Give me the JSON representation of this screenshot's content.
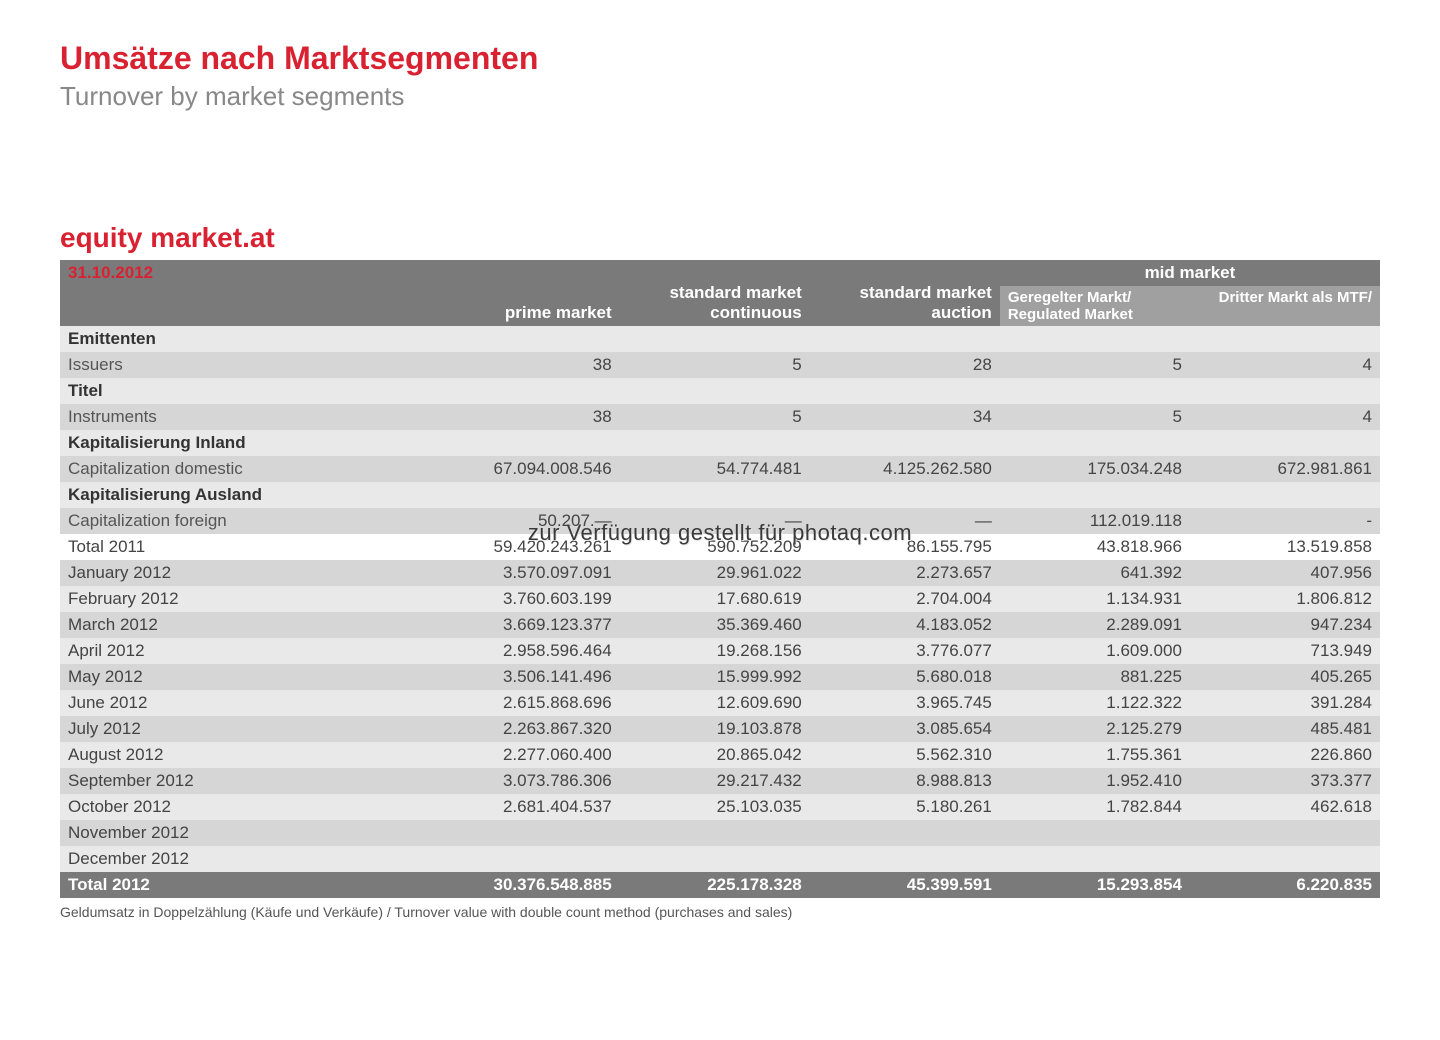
{
  "header": {
    "title_de": "Umsätze nach Marktsegmenten",
    "title_en": "Turnover by market segments",
    "section": "equity market.at",
    "date": "31.10.2012"
  },
  "columns": {
    "c1": "prime market",
    "c2": "standard market continuous",
    "c3": "standard market auction",
    "c4": "mid market",
    "sub_c4a": "Geregelter Markt/ Regulated Market",
    "sub_c4b": "Dritter Markt als MTF/"
  },
  "labels": {
    "emittenten": "Emittenten",
    "issuers": "Issuers",
    "titel": "Titel",
    "instruments": "Instruments",
    "kap_inland": "Kapitalisierung Inland",
    "cap_domestic": "Capitalization domestic",
    "kap_ausland": "Kapitalisierung Ausland",
    "cap_foreign": "Capitalization foreign",
    "total_2011": "Total 2011",
    "total_2012": "Total 2012"
  },
  "months": {
    "m1": "January 2012",
    "m2": "February 2012",
    "m3": "March 2012",
    "m4": "April 2012",
    "m5": "May 2012",
    "m6": "June 2012",
    "m7": "July 2012",
    "m8": "August 2012",
    "m9": "September 2012",
    "m10": "October 2012",
    "m11": "November 2012",
    "m12": "December 2012"
  },
  "data": {
    "issuers": {
      "c1": "38",
      "c2": "5",
      "c3": "28",
      "c4": "5",
      "c5": "4"
    },
    "instruments": {
      "c1": "38",
      "c2": "5",
      "c3": "34",
      "c4": "5",
      "c5": "4"
    },
    "cap_domestic": {
      "c1": "67.094.008.546",
      "c2": "54.774.481",
      "c3": "4.125.262.580",
      "c4": "175.034.248",
      "c5": "672.981.861"
    },
    "cap_foreign": {
      "c1": "50.207.—",
      "c2": "—",
      "c3": "—",
      "c4": "112.019.118",
      "c5": "-"
    },
    "total_2011": {
      "c1": "59.420.243.261",
      "c2": "590.752.209",
      "c3": "86.155.795",
      "c4": "43.818.966",
      "c5": "13.519.858"
    },
    "m1": {
      "c1": "3.570.097.091",
      "c2": "29.961.022",
      "c3": "2.273.657",
      "c4": "641.392",
      "c5": "407.956"
    },
    "m2": {
      "c1": "3.760.603.199",
      "c2": "17.680.619",
      "c3": "2.704.004",
      "c4": "1.134.931",
      "c5": "1.806.812"
    },
    "m3": {
      "c1": "3.669.123.377",
      "c2": "35.369.460",
      "c3": "4.183.052",
      "c4": "2.289.091",
      "c5": "947.234"
    },
    "m4": {
      "c1": "2.958.596.464",
      "c2": "19.268.156",
      "c3": "3.776.077",
      "c4": "1.609.000",
      "c5": "713.949"
    },
    "m5": {
      "c1": "3.506.141.496",
      "c2": "15.999.992",
      "c3": "5.680.018",
      "c4": "881.225",
      "c5": "405.265"
    },
    "m6": {
      "c1": "2.615.868.696",
      "c2": "12.609.690",
      "c3": "3.965.745",
      "c4": "1.122.322",
      "c5": "391.284"
    },
    "m7": {
      "c1": "2.263.867.320",
      "c2": "19.103.878",
      "c3": "3.085.654",
      "c4": "2.125.279",
      "c5": "485.481"
    },
    "m8": {
      "c1": "2.277.060.400",
      "c2": "20.865.042",
      "c3": "5.562.310",
      "c4": "1.755.361",
      "c5": "226.860"
    },
    "m9": {
      "c1": "3.073.786.306",
      "c2": "29.217.432",
      "c3": "8.988.813",
      "c4": "1.952.410",
      "c5": "373.377"
    },
    "m10": {
      "c1": "2.681.404.537",
      "c2": "25.103.035",
      "c3": "5.180.261",
      "c4": "1.782.844",
      "c5": "462.618"
    },
    "m11": {
      "c1": "",
      "c2": "",
      "c3": "",
      "c4": "",
      "c5": ""
    },
    "m12": {
      "c1": "",
      "c2": "",
      "c3": "",
      "c4": "",
      "c5": ""
    },
    "total_2012": {
      "c1": "30.376.548.885",
      "c2": "225.178.328",
      "c3": "45.399.591",
      "c4": "15.293.854",
      "c5": "6.220.835"
    }
  },
  "footnote": "Geldumsatz in Doppelzählung (Käufe und Verkäufe) / Turnover value with double count method (purchases and sales)",
  "watermark": "zur Verfügung gestellt für photaq.com",
  "style": {
    "accent_color": "#d92231",
    "header_bg": "#7a7a7a",
    "subheader_bg": "#a0a0a0",
    "row_light": "#e9e9e9",
    "row_dark": "#d6d6d6",
    "total_bg": "#7a7a7a",
    "text_color": "#444444",
    "font_family": "Arial"
  }
}
